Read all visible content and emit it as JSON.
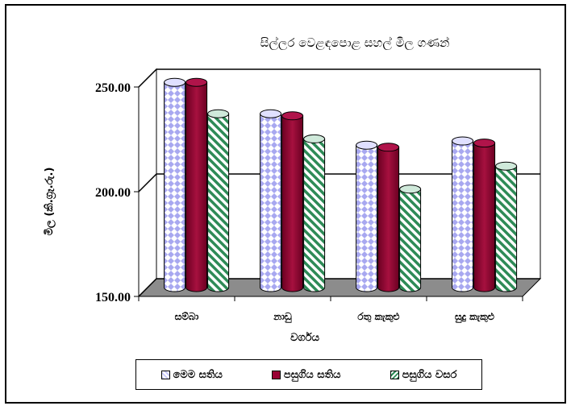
{
  "chart_data": {
    "type": "bar",
    "title": "සිල්ලර වෙළඳපොළ සහල් මිල ගණන්",
    "xlabel": "වර්ගය",
    "ylabel": "මිල (කි.ග්‍රෑ.රු.)",
    "ylim": [
      150,
      250
    ],
    "yticks": [
      "150.00",
      "200.00",
      "250.00"
    ],
    "ytick_values": [
      150,
      200,
      250
    ],
    "grid": true,
    "legend_position": "bottom",
    "categories": [
      "සම්බා",
      "නාඩු",
      "රතු කැකුළු",
      "සුදු කැකුළු"
    ],
    "series": [
      {
        "name": "මෙම සතිය",
        "values": [
          248,
          233,
          218,
          220
        ],
        "color": "#c8c8ff",
        "pattern": "diamond"
      },
      {
        "name": "පසුගිය සතිය",
        "values": [
          248,
          232,
          217,
          219
        ],
        "color": "#990033",
        "pattern": "solid"
      },
      {
        "name": "පසුගිය වසර",
        "values": [
          233,
          221,
          197,
          208
        ],
        "color": "#ffffff",
        "pattern": "stripe"
      }
    ]
  }
}
